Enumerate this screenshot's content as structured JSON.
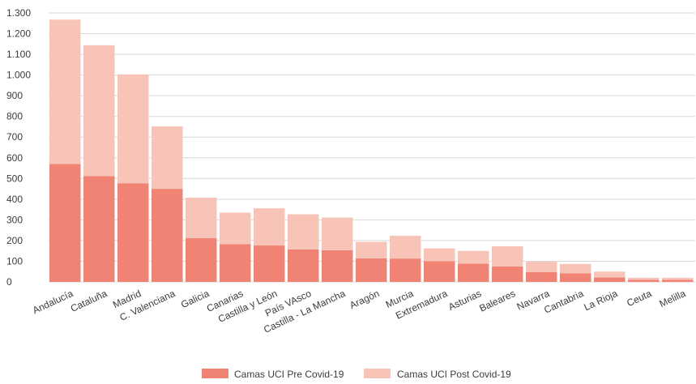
{
  "chart_data": {
    "type": "bar",
    "stacked": true,
    "title": "",
    "xlabel": "",
    "ylabel": "",
    "ylim": [
      0,
      1300
    ],
    "y_ticks": [
      0,
      100,
      200,
      300,
      400,
      500,
      600,
      700,
      800,
      900,
      1000,
      1100,
      1200,
      1300
    ],
    "y_tick_labels": [
      "0",
      "100",
      "200",
      "300",
      "400",
      "500",
      "600",
      "700",
      "800",
      "900",
      "1.000",
      "1.100",
      "1.200",
      "1.300"
    ],
    "grid": true,
    "legend_position": "bottom",
    "categories": [
      "Andalucía",
      "Cataluña",
      "Madrid",
      "C. Valenciana",
      "Galicia",
      "Canarias",
      "Castilla y León",
      "País VAsco",
      "Castilla - La Mancha",
      "Aragón",
      "Murcia",
      "Extremadura",
      "Asturias",
      "Baleares",
      "Navarra",
      "Cantabria",
      "La Rioja",
      "Ceuta",
      "Melilla"
    ],
    "series": [
      {
        "name": "Camas UCI Pre Covid-19",
        "color": "#f08373",
        "values": [
          570,
          512,
          477,
          450,
          212,
          183,
          176,
          157,
          153,
          114,
          113,
          100,
          88,
          75,
          48,
          42,
          22,
          10,
          10
        ]
      },
      {
        "name": "Camas UCI Post Covid-19",
        "color": "#f8c4b7",
        "values": [
          698,
          632,
          526,
          302,
          195,
          152,
          180,
          170,
          158,
          80,
          110,
          62,
          62,
          97,
          50,
          45,
          28,
          10,
          10
        ]
      }
    ]
  }
}
